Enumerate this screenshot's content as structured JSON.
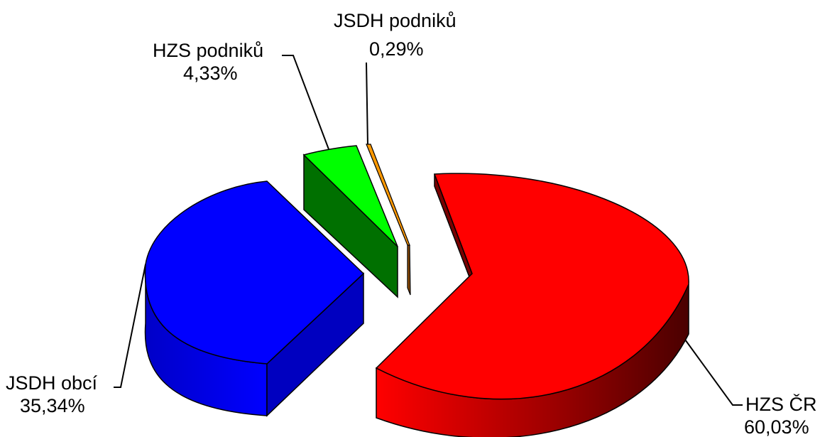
{
  "chart_data": {
    "type": "pie",
    "style": "3d-exploded",
    "title": "",
    "slices": [
      {
        "label": "HZS ČR",
        "pct_text": "60,03%",
        "value": 60.03,
        "color": "#ff0000",
        "side_color": "#7a0000"
      },
      {
        "label": "JSDH obcí",
        "pct_text": "35,34%",
        "value": 35.34,
        "color": "#0000ff",
        "side_color": "#0000a0"
      },
      {
        "label": "HZS podniků",
        "pct_text": "4,33%",
        "value": 4.33,
        "color": "#00ff00",
        "side_color": "#007000"
      },
      {
        "label": "JSDH podniků",
        "pct_text": "0,29%",
        "value": 0.29,
        "color": "#ff9900",
        "side_color": "#8a4a00"
      }
    ]
  }
}
